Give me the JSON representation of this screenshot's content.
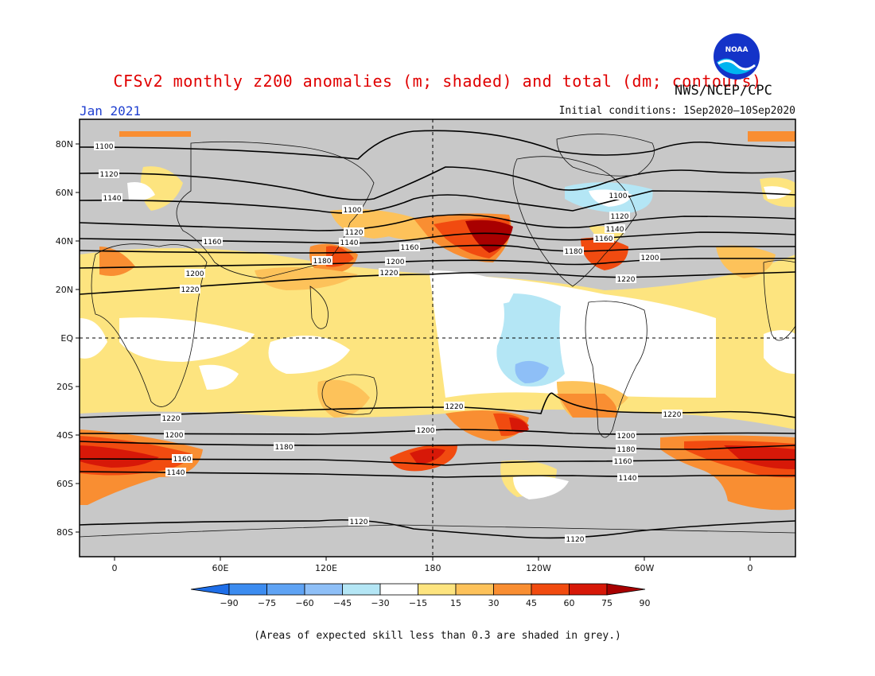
{
  "title": "CFSv2 monthly z200 anomalies (m; shaded) and total (dm; contours)",
  "month": "Jan 2021",
  "agency": "NWS/NCEP/CPC",
  "logo_text": "NOAA",
  "initial_conditions": "Initial conditions: 1Sep2020–10Sep2020",
  "footnote": "(Areas of expected skill less than 0.3 are shaded in grey.)",
  "lat_labels": [
    "80N",
    "60N",
    "40N",
    "20N",
    "EQ",
    "20S",
    "40S",
    "60S",
    "80S"
  ],
  "lon_labels": [
    "0",
    "60E",
    "120E",
    "180",
    "120W",
    "60W",
    "0"
  ],
  "colorbar": {
    "labels": [
      "−90",
      "−75",
      "−60",
      "−45",
      "−30",
      "−15",
      "15",
      "30",
      "45",
      "60",
      "75",
      "90"
    ],
    "colors": [
      "#1e6ee8",
      "#3c8cf0",
      "#5fa3f4",
      "#8ebff7",
      "#b4e6f5",
      "#ffffff",
      "#fde47f",
      "#fdc25a",
      "#f98e32",
      "#f14b10",
      "#d71808",
      "#a80000"
    ],
    "grey_skill_color": "#c8c8c8"
  },
  "contour_labels": {
    "nh": [
      "1100",
      "1120",
      "1140",
      "1160",
      "1180",
      "1200",
      "1220"
    ],
    "sh": [
      "1220",
      "1200",
      "1180",
      "1160",
      "1140",
      "1120"
    ]
  }
}
